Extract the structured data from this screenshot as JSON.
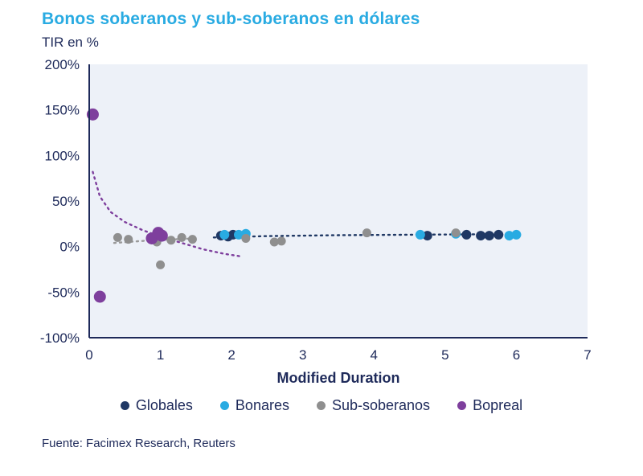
{
  "title": "Bonos soberanos y sub-soberanos en dólares",
  "subtitle": "TIR en %",
  "source": "Fuente: Facimex Research, Reuters",
  "colors": {
    "title": "#29abe2",
    "text": "#1e2a5a",
    "axis": "#1e2a5a",
    "plot_bg": "#edf1f8"
  },
  "chart_data": {
    "type": "scatter",
    "title": "Bonos soberanos y sub-soberanos en dólares",
    "subtitle": "TIR en %",
    "xlabel": "Modified Duration",
    "ylabel": "TIR en %",
    "xlim": [
      0,
      7
    ],
    "ylim": [
      -100,
      200
    ],
    "xticks": [
      0,
      1,
      2,
      3,
      4,
      5,
      6,
      7
    ],
    "yticks": [
      200,
      150,
      100,
      50,
      0,
      -50,
      -100
    ],
    "grid": false,
    "legend_position": "bottom",
    "series": [
      {
        "name": "Globales",
        "color": "#1f3864",
        "r": 6,
        "points": [
          [
            1.85,
            12
          ],
          [
            1.95,
            11
          ],
          [
            2.02,
            13
          ],
          [
            4.75,
            12
          ],
          [
            5.3,
            13
          ],
          [
            5.5,
            12
          ],
          [
            5.62,
            12
          ],
          [
            5.75,
            13
          ]
        ]
      },
      {
        "name": "Bonares",
        "color": "#29abe2",
        "r": 6,
        "points": [
          [
            1.9,
            13
          ],
          [
            2.1,
            13
          ],
          [
            2.2,
            14
          ],
          [
            4.65,
            13
          ],
          [
            5.15,
            14
          ],
          [
            5.9,
            12
          ],
          [
            6.0,
            13
          ]
        ]
      },
      {
        "name": "Sub-soberanos",
        "color": "#8f8f8f",
        "r": 5.5,
        "points": [
          [
            0.4,
            10
          ],
          [
            0.55,
            8
          ],
          [
            0.95,
            5
          ],
          [
            1.0,
            -20
          ],
          [
            1.15,
            7
          ],
          [
            1.3,
            10
          ],
          [
            1.45,
            8
          ],
          [
            2.2,
            9
          ],
          [
            2.6,
            5
          ],
          [
            2.7,
            6
          ],
          [
            3.9,
            15
          ],
          [
            5.15,
            15
          ]
        ]
      },
      {
        "name": "Bopreal",
        "color": "#7e3f9d",
        "r": 7.5,
        "points": [
          [
            0.05,
            145
          ],
          [
            0.15,
            -55
          ],
          [
            0.88,
            9
          ],
          [
            0.97,
            15
          ],
          [
            1.02,
            12
          ]
        ]
      }
    ],
    "trendlines": [
      {
        "name": "bopreal-trend",
        "color": "#7e3f9d",
        "style": "dotted",
        "points": [
          [
            0.05,
            82
          ],
          [
            0.15,
            55
          ],
          [
            0.3,
            38
          ],
          [
            0.5,
            27
          ],
          [
            0.75,
            18
          ],
          [
            1.0,
            11
          ],
          [
            1.3,
            4
          ],
          [
            1.6,
            -3
          ],
          [
            1.9,
            -8
          ],
          [
            2.15,
            -11
          ]
        ]
      },
      {
        "name": "soberanos-trend",
        "color": "#1f3864",
        "style": "dotted",
        "points": [
          [
            1.75,
            10
          ],
          [
            2.5,
            11.5
          ],
          [
            3.5,
            12.5
          ],
          [
            4.5,
            13
          ],
          [
            5.5,
            13.5
          ],
          [
            6.0,
            13.5
          ]
        ]
      },
      {
        "name": "sub-soberanos-trend",
        "color": "#9a9a9a",
        "style": "dotted",
        "points": [
          [
            0.35,
            4
          ],
          [
            0.8,
            6.5
          ],
          [
            1.2,
            8
          ],
          [
            1.5,
            9
          ]
        ]
      }
    ]
  }
}
